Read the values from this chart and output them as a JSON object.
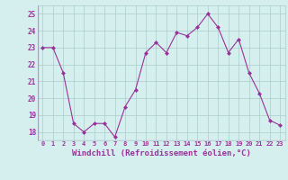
{
  "x": [
    0,
    1,
    2,
    3,
    4,
    5,
    6,
    7,
    8,
    9,
    10,
    11,
    12,
    13,
    14,
    15,
    16,
    17,
    18,
    19,
    20,
    21,
    22,
    23
  ],
  "y": [
    23,
    23,
    21.5,
    18.5,
    18,
    18.5,
    18.5,
    17.7,
    19.5,
    20.5,
    22.7,
    23.3,
    22.7,
    23.9,
    23.7,
    24.2,
    25,
    24.2,
    22.7,
    23.5,
    21.5,
    20.3,
    18.7,
    18.4
  ],
  "line_color": "#993399",
  "marker": "D",
  "marker_size": 2,
  "bg_color": "#d5eeee",
  "grid_color": "#aacccc",
  "xlabel": "Windchill (Refroidissement éolien,°C)",
  "tick_color": "#993399",
  "xlim": [
    -0.5,
    23.5
  ],
  "ylim": [
    17.5,
    25.5
  ],
  "yticks": [
    18,
    19,
    20,
    21,
    22,
    23,
    24,
    25
  ],
  "xtick_labels": [
    "0",
    "1",
    "2",
    "3",
    "4",
    "5",
    "6",
    "7",
    "8",
    "9",
    "10",
    "11",
    "12",
    "13",
    "14",
    "15",
    "16",
    "17",
    "18",
    "19",
    "20",
    "21",
    "22",
    "23"
  ]
}
